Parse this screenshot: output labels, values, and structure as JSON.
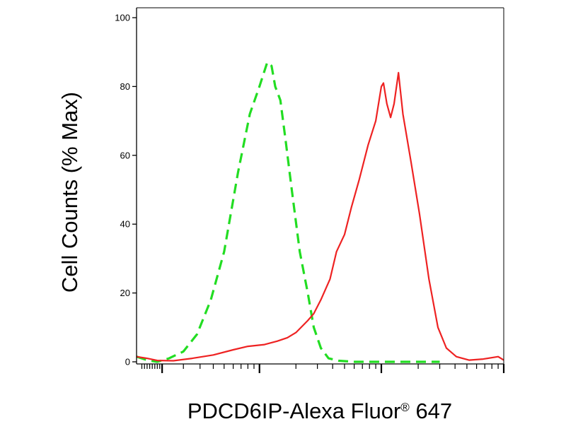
{
  "chart_data": {
    "type": "line",
    "xlabel": "PDCD6IP-Alexa Fluor",
    "xlabel_registered": "®",
    "xlabel_suffix": " 647",
    "ylabel": "Cell Counts (% Max)",
    "x_scale": "log",
    "xlim": [
      0,
      1000
    ],
    "ylim": [
      0,
      100
    ],
    "yticks": [
      0,
      20,
      40,
      60,
      80,
      100
    ],
    "ytick_labels": [
      "0",
      "20",
      "40",
      "60",
      "80",
      "100"
    ],
    "grid": false,
    "series": [
      {
        "style": "dashed",
        "color": "#22dd22",
        "points": [
          [
            0.0,
            1.5
          ],
          [
            0.4,
            0.5
          ],
          [
            0.8,
            0.0
          ],
          [
            1.3,
            1.0
          ],
          [
            2.0,
            3.0
          ],
          [
            2.8,
            8.0
          ],
          [
            3.8,
            18.0
          ],
          [
            5.0,
            32.0
          ],
          [
            6.6,
            55.0
          ],
          [
            8.3,
            72.0
          ],
          [
            10.0,
            80.0
          ],
          [
            11.6,
            87.0
          ],
          [
            12.6,
            86.0
          ],
          [
            13.5,
            80.0
          ],
          [
            14.9,
            76.0
          ],
          [
            16.5,
            64.0
          ],
          [
            18.5,
            50.0
          ],
          [
            21.5,
            32.0
          ],
          [
            25.0,
            20.0
          ],
          [
            28.0,
            10.0
          ],
          [
            32.0,
            4.0
          ],
          [
            37.0,
            1.0
          ],
          [
            45.0,
            0.3
          ],
          [
            60.0,
            0.0
          ],
          [
            120.0,
            0.0
          ],
          [
            200.0,
            0.0
          ],
          [
            300.0,
            0.0
          ]
        ]
      },
      {
        "style": "solid",
        "color": "#ee2222",
        "points": [
          [
            0.0,
            1.5
          ],
          [
            0.4,
            1.0
          ],
          [
            0.8,
            0.4
          ],
          [
            1.5,
            0.3
          ],
          [
            2.5,
            1.0
          ],
          [
            4.0,
            2.0
          ],
          [
            6.0,
            3.5
          ],
          [
            8.0,
            4.5
          ],
          [
            11.0,
            5.0
          ],
          [
            14.0,
            6.0
          ],
          [
            17.0,
            7.0
          ],
          [
            20.0,
            8.5
          ],
          [
            25.0,
            12.0
          ],
          [
            28.0,
            14.0
          ],
          [
            32.0,
            18.0
          ],
          [
            38.0,
            24.0
          ],
          [
            43.0,
            32.0
          ],
          [
            50.0,
            37.0
          ],
          [
            57.0,
            45.0
          ],
          [
            66.0,
            53.0
          ],
          [
            78.0,
            63.0
          ],
          [
            90.0,
            70.0
          ],
          [
            100.0,
            80.0
          ],
          [
            104.0,
            81.0
          ],
          [
            111.0,
            75.0
          ],
          [
            119.0,
            71.0
          ],
          [
            127.0,
            75.0
          ],
          [
            138.0,
            84.0
          ],
          [
            150.0,
            72.0
          ],
          [
            175.0,
            58.0
          ],
          [
            205.0,
            43.0
          ],
          [
            245.0,
            24.0
          ],
          [
            290.0,
            10.0
          ],
          [
            340.0,
            4.0
          ],
          [
            410.0,
            1.5
          ],
          [
            520.0,
            0.5
          ],
          [
            680.0,
            0.8
          ],
          [
            900.0,
            1.5
          ],
          [
            1000.0,
            0.5
          ]
        ]
      }
    ]
  }
}
